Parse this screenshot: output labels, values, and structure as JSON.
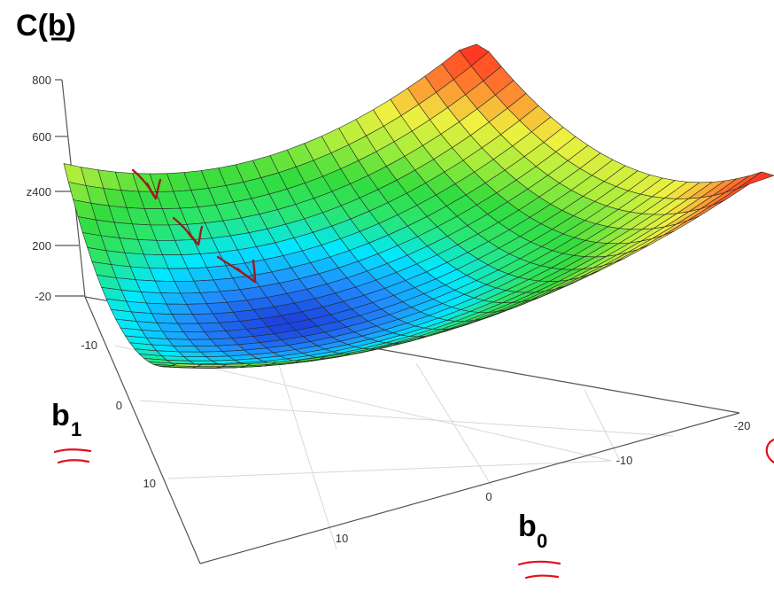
{
  "chart_data": {
    "type": "surface",
    "title": {
      "letter": "C",
      "open": "(",
      "arg": "b",
      "close": ")"
    },
    "x_axis": {
      "name": "b",
      "subscript": "0",
      "ticks": [
        "-20",
        "-10",
        "0",
        "10"
      ]
    },
    "y_axis": {
      "name": "b",
      "subscript": "1",
      "ticks": [
        "-10",
        "0",
        "10"
      ]
    },
    "z_axis": {
      "ticks": [
        "800",
        "600",
        "z400",
        "200",
        "-20"
      ]
    },
    "surface": {
      "b0_range": [
        -20,
        10
      ],
      "b1_range": [
        -10,
        20
      ],
      "grid_size": 24,
      "minimum_at": [
        0,
        5
      ],
      "minimum_value": 20,
      "max_value": 800,
      "colormap": [
        "#1c3fdc",
        "#1f8fff",
        "#00e8ff",
        "#2ae66e",
        "#34dc3c",
        "#a8ee3c",
        "#f0f040",
        "#ff8030",
        "#ff3020"
      ]
    },
    "annotations": {
      "arrow_color": "#9b1c1c",
      "arrows": 3,
      "underline_color": "#e0101a"
    }
  }
}
